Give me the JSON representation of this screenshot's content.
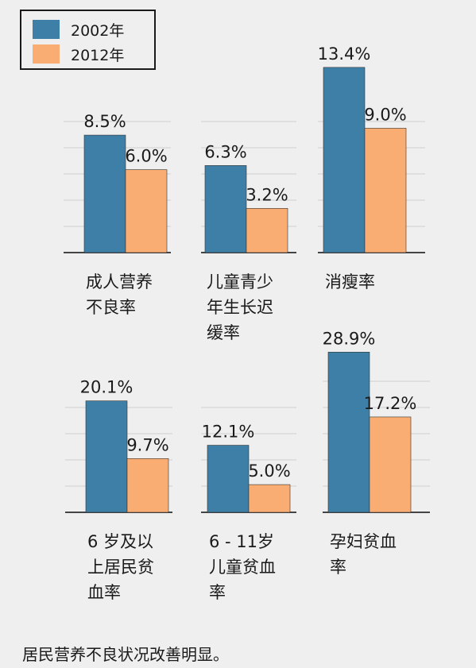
{
  "colors": {
    "series_2002": "#3d7fa6",
    "series_2012": "#f9ad73",
    "grid": "#cfcfcf",
    "axis": "#444444"
  },
  "legend": {
    "items": [
      {
        "label": "2002年",
        "color": "#3d7fa6"
      },
      {
        "label": "2012年",
        "color": "#f9ad73"
      }
    ]
  },
  "footer": "居民营养不良状况改善明显。",
  "chart_data": {
    "type": "bar",
    "series": [
      {
        "name": "2002年",
        "values": [
          8.5,
          6.3,
          13.4,
          20.1,
          12.1,
          28.9
        ]
      },
      {
        "name": "2012年",
        "values": [
          6.0,
          3.2,
          9.0,
          9.7,
          5.0,
          17.2
        ]
      }
    ],
    "categories": [
      [
        "成人营养",
        "不良率"
      ],
      [
        "儿童青少",
        "年生长迟",
        "缓率"
      ],
      [
        "消瘦率"
      ],
      [
        "6 岁及以",
        "上居民贫",
        "血率"
      ],
      [
        "6 - 11岁",
        "儿童贫血",
        "率"
      ],
      [
        "孕妇贫血",
        "率"
      ]
    ],
    "value_labels": [
      [
        "8.5%",
        "6.3%",
        "13.4%",
        "20.1%",
        "12.1%",
        "28.9%"
      ],
      [
        "6.0%",
        "3.2%",
        "9.0%",
        "9.7%",
        "5.0%",
        "17.2%"
      ]
    ],
    "grid": true,
    "legend_position": "top-left"
  }
}
